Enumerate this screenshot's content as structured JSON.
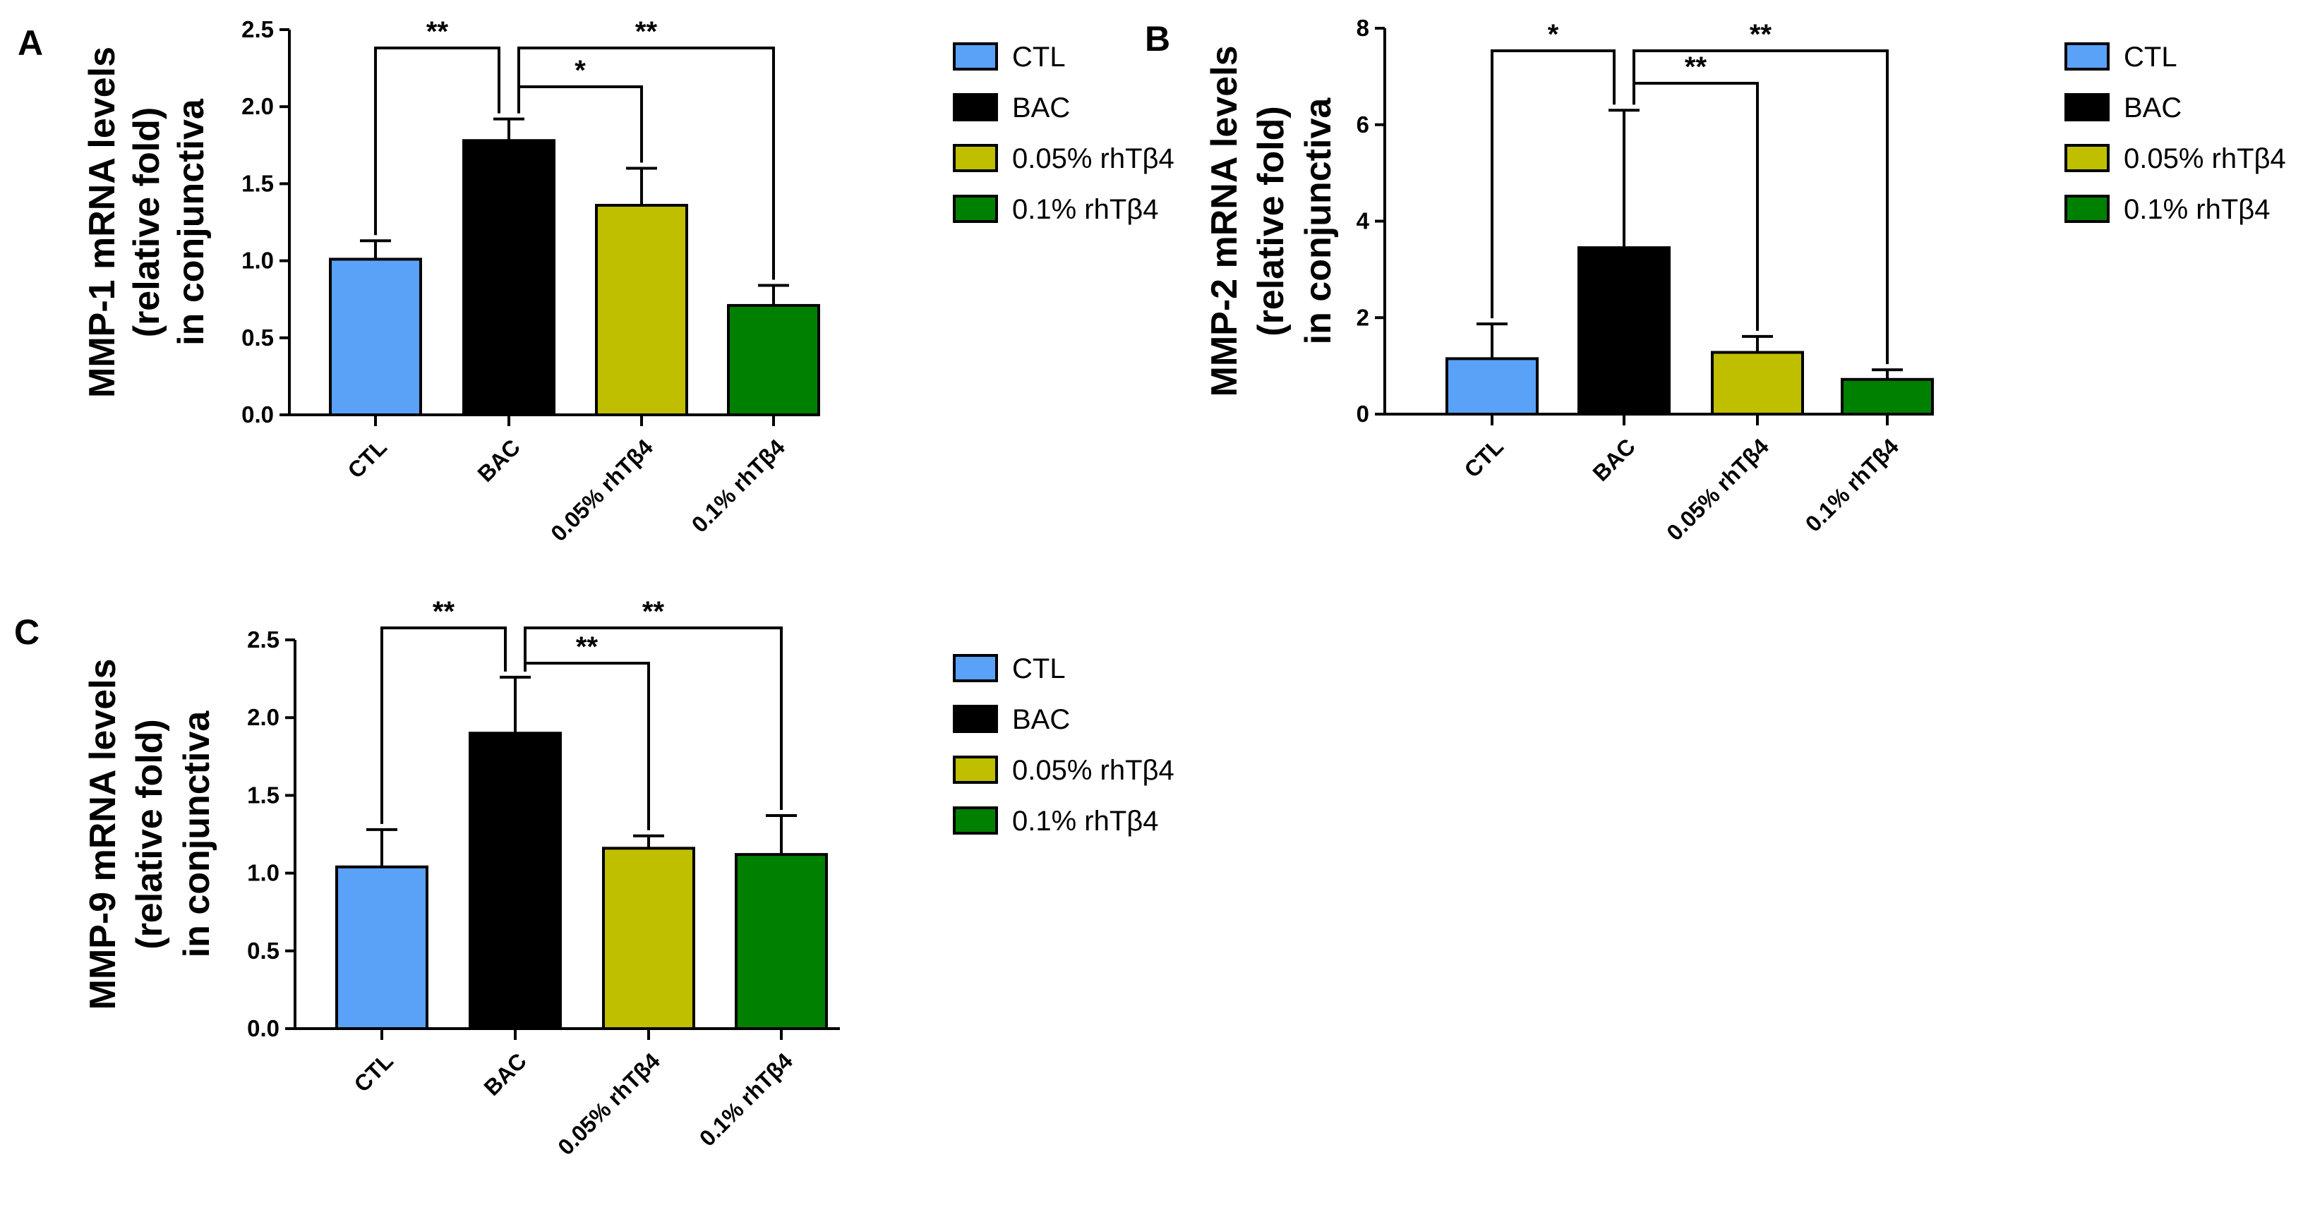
{
  "figure": {
    "panels": [
      {
        "letter": "A",
        "ylabel_lines": [
          "MMP-1 mRNA levels",
          "(relative fold)",
          "in conjunctiva"
        ],
        "legend": [
          "CTL",
          "BAC",
          "0.05% rhTβ4",
          "0.1% rhTβ4"
        ]
      },
      {
        "letter": "B",
        "ylabel_lines": [
          "MMP-2 mRNA levels",
          "(relative fold)",
          "in conjunctiva"
        ],
        "legend": [
          "CTL",
          "BAC",
          "0.05% rhTβ4",
          "0.1% rhTβ4"
        ]
      },
      {
        "letter": "C",
        "ylabel_lines": [
          "MMP-9 mRNA levels",
          "(relative fold)",
          "in conjunctiva"
        ],
        "legend": [
          "CTL",
          "BAC",
          "0.05% rhTβ4",
          "0.1% rhTβ4"
        ]
      }
    ]
  },
  "colors": {
    "CTL": "#5aa2f7",
    "BAC": "#000000",
    "0.05% rhTβ4": "#bfbf00",
    "0.1% rhTβ4": "#008000"
  },
  "chart_data": [
    {
      "type": "bar",
      "panel": "A",
      "categories": [
        "CTL",
        "BAC",
        "0.05% rhTβ4",
        "0.1% rhTβ4"
      ],
      "values": [
        1.01,
        1.78,
        1.36,
        0.71
      ],
      "errors": [
        0.12,
        0.14,
        0.24,
        0.13
      ],
      "ylabel": "MMP-1 mRNA levels (relative fold) in conjunctiva",
      "ylim": [
        0,
        2.5
      ],
      "yticks": [
        "0.0",
        "0.5",
        "1.0",
        "1.5",
        "2.0",
        "2.5"
      ],
      "significance": [
        {
          "from": "CTL",
          "to": "BAC",
          "label": "**",
          "level": 1
        },
        {
          "from": "BAC",
          "to": "0.05% rhTβ4",
          "label": "*",
          "level": 2
        },
        {
          "from": "BAC",
          "to": "0.1% rhTβ4",
          "label": "**",
          "level": 1
        }
      ]
    },
    {
      "type": "bar",
      "panel": "B",
      "categories": [
        "CTL",
        "BAC",
        "0.05% rhTβ4",
        "0.1% rhTβ4"
      ],
      "values": [
        1.15,
        3.45,
        1.28,
        0.72
      ],
      "errors": [
        0.72,
        2.85,
        0.33,
        0.2
      ],
      "ylabel": "MMP-2 mRNA levels (relative fold) in conjunctiva",
      "ylim": [
        0,
        8
      ],
      "yticks": [
        "0",
        "2",
        "4",
        "6",
        "8"
      ],
      "significance": [
        {
          "from": "CTL",
          "to": "BAC",
          "label": "*",
          "level": 1
        },
        {
          "from": "BAC",
          "to": "0.05% rhTβ4",
          "label": "**",
          "level": 2
        },
        {
          "from": "BAC",
          "to": "0.1% rhTβ4",
          "label": "**",
          "level": 1
        }
      ]
    },
    {
      "type": "bar",
      "panel": "C",
      "categories": [
        "CTL",
        "BAC",
        "0.05% rhTβ4",
        "0.1% rhTβ4"
      ],
      "values": [
        1.04,
        1.9,
        1.16,
        1.12
      ],
      "errors": [
        0.24,
        0.36,
        0.08,
        0.25
      ],
      "ylabel": "MMP-9 mRNA levels (relative fold) in conjunctiva",
      "ylim": [
        0,
        2.5
      ],
      "yticks": [
        "0.0",
        "0.5",
        "1.0",
        "1.5",
        "2.0",
        "2.5"
      ],
      "significance": [
        {
          "from": "CTL",
          "to": "BAC",
          "label": "**",
          "level": 1
        },
        {
          "from": "BAC",
          "to": "0.05% rhTβ4",
          "label": "**",
          "level": 2
        },
        {
          "from": "BAC",
          "to": "0.1% rhTβ4",
          "label": "**",
          "level": 1
        }
      ]
    }
  ]
}
